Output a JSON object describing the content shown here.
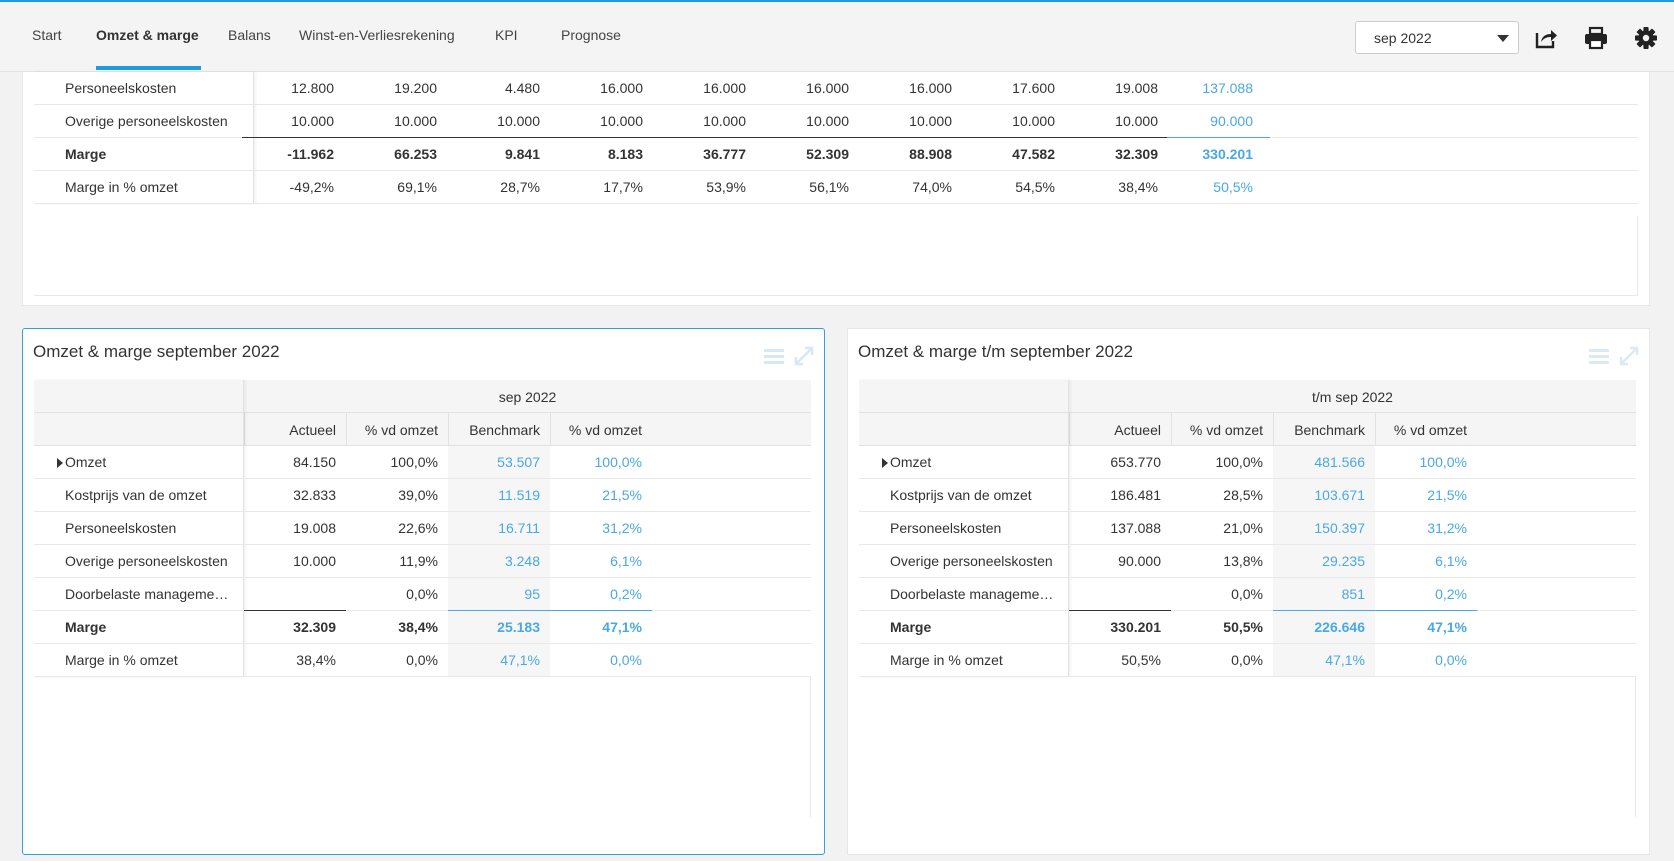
{
  "nav": {
    "tabs": [
      {
        "label": "Start"
      },
      {
        "label": "Omzet & marge"
      },
      {
        "label": "Balans"
      },
      {
        "label": "Winst-en-Verliesrekening"
      },
      {
        "label": "KPI"
      },
      {
        "label": "Prognose"
      }
    ],
    "active_index": 1
  },
  "period_select": {
    "value": "sep 2022"
  },
  "accent_color": "#1c9be0",
  "benchmark_color": "#4aa8e4",
  "top_table": {
    "rows": [
      {
        "label": "Personeelskosten",
        "values": [
          "12.800",
          "19.200",
          "4.480",
          "16.000",
          "16.000",
          "16.000",
          "16.000",
          "17.600",
          "19.008"
        ],
        "total": "137.088"
      },
      {
        "label": "Overige personeelskosten",
        "values": [
          "10.000",
          "10.000",
          "10.000",
          "10.000",
          "10.000",
          "10.000",
          "10.000",
          "10.000",
          "10.000"
        ],
        "total": "90.000"
      },
      {
        "label": "Marge",
        "values": [
          "-11.962",
          "66.253",
          "9.841",
          "8.183",
          "36.777",
          "52.309",
          "88.908",
          "47.582",
          "32.309"
        ],
        "total": "330.201",
        "bold": true
      },
      {
        "label": "Marge in % omzet",
        "values": [
          "-49,2%",
          "69,1%",
          "28,7%",
          "17,7%",
          "53,9%",
          "56,1%",
          "74,0%",
          "54,5%",
          "38,4%"
        ],
        "total": "50,5%"
      }
    ]
  },
  "panel_month": {
    "title": "Omzet & marge september 2022",
    "group_header": "sep 2022",
    "columns": [
      "Actueel",
      "% vd omzet",
      "Benchmark",
      "% vd omzet"
    ],
    "rows": [
      {
        "label": "Omzet",
        "expandable": true,
        "actual": "84.150",
        "pct": "100,0%",
        "bench": "53.507",
        "bench_pct": "100,0%"
      },
      {
        "label": "Kostprijs van de omzet",
        "actual": "32.833",
        "pct": "39,0%",
        "bench": "11.519",
        "bench_pct": "21,5%"
      },
      {
        "label": "Personeelskosten",
        "actual": "19.008",
        "pct": "22,6%",
        "bench": "16.711",
        "bench_pct": "31,2%"
      },
      {
        "label": "Overige personeelskosten",
        "actual": "10.000",
        "pct": "11,9%",
        "bench": "3.248",
        "bench_pct": "6,1%"
      },
      {
        "label": "Doorbelaste managementvergoeding",
        "actual": "",
        "pct": "0,0%",
        "bench": "95",
        "bench_pct": "0,2%"
      },
      {
        "label": "Marge",
        "bold": true,
        "actual": "32.309",
        "pct": "38,4%",
        "bench": "25.183",
        "bench_pct": "47,1%"
      },
      {
        "label": "Marge in % omzet",
        "actual": "38,4%",
        "pct": "0,0%",
        "bench": "47,1%",
        "bench_pct": "0,0%"
      }
    ]
  },
  "panel_ytd": {
    "title": "Omzet & marge t/m september 2022",
    "group_header": "t/m sep 2022",
    "columns": [
      "Actueel",
      "% vd omzet",
      "Benchmark",
      "% vd omzet"
    ],
    "rows": [
      {
        "label": "Omzet",
        "expandable": true,
        "actual": "653.770",
        "pct": "100,0%",
        "bench": "481.566",
        "bench_pct": "100,0%"
      },
      {
        "label": "Kostprijs van de omzet",
        "actual": "186.481",
        "pct": "28,5%",
        "bench": "103.671",
        "bench_pct": "21,5%"
      },
      {
        "label": "Personeelskosten",
        "actual": "137.088",
        "pct": "21,0%",
        "bench": "150.397",
        "bench_pct": "31,2%"
      },
      {
        "label": "Overige personeelskosten",
        "actual": "90.000",
        "pct": "13,8%",
        "bench": "29.235",
        "bench_pct": "6,1%"
      },
      {
        "label": "Doorbelaste managementvergoeding",
        "actual": "",
        "pct": "0,0%",
        "bench": "851",
        "bench_pct": "0,2%"
      },
      {
        "label": "Marge",
        "bold": true,
        "actual": "330.201",
        "pct": "50,5%",
        "bench": "226.646",
        "bench_pct": "47,1%"
      },
      {
        "label": "Marge in % omzet",
        "actual": "50,5%",
        "pct": "0,0%",
        "bench": "47,1%",
        "bench_pct": "0,0%"
      }
    ]
  },
  "icons": [
    "export-icon",
    "print-icon",
    "settings-icon",
    "menu-icon",
    "expand-icon",
    "caret-down-icon",
    "expand-row-icon"
  ]
}
